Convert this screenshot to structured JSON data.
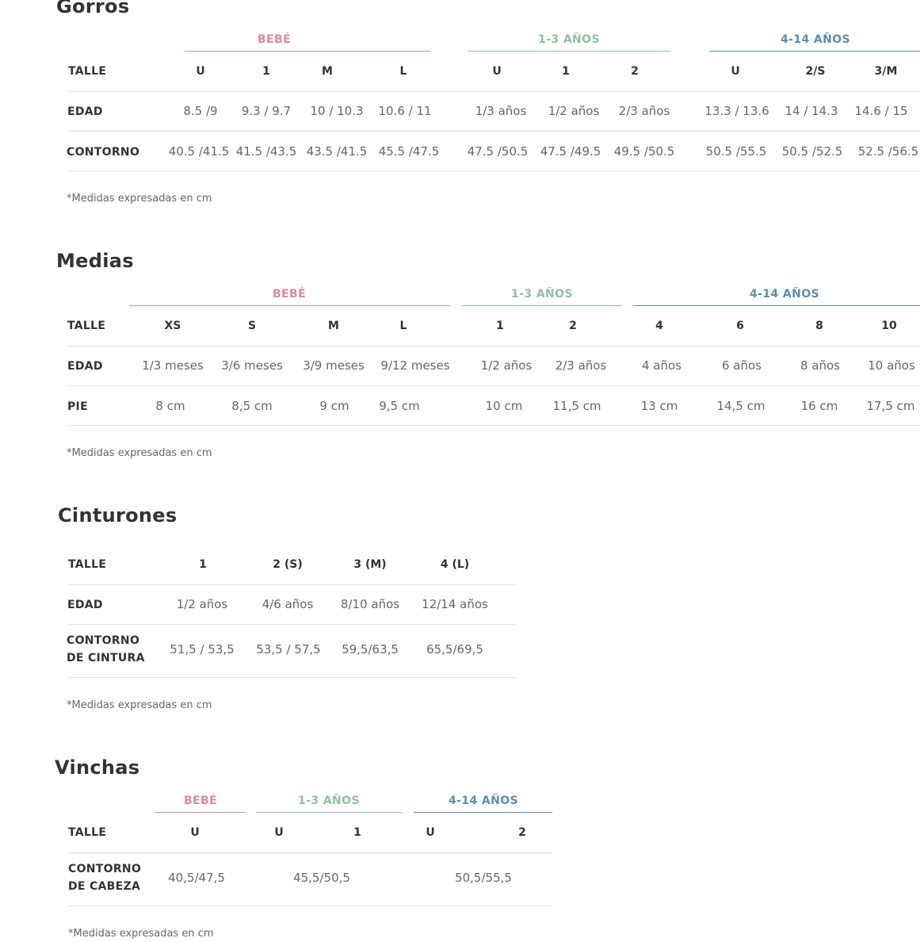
{
  "note": "*Medidas expresadas en cm",
  "gorros": {
    "title": "Gorros",
    "groups": [
      "BEBÉ",
      "1-3 AÑOS",
      "4-14 AÑOS"
    ],
    "rows": [
      "TALLE",
      "EDAD",
      "CONTORNO"
    ],
    "talle": [
      "U",
      "1",
      "M",
      "L",
      "U",
      "1",
      "2",
      "U",
      "2/S",
      "3/M"
    ],
    "edad": [
      "8.5 /9",
      "9.3 / 9.7",
      "10 / 10.3",
      "10.6 / 11",
      "1/3 años",
      "1/2 años",
      "2/3 años",
      "13.3 / 13.6",
      "14 / 14.3",
      "14.6 / 15"
    ],
    "contorno": [
      "40.5 /41.5",
      "41.5 /43.5",
      "43.5 /41.5",
      "45.5 /47.5",
      "47.5 /50.5",
      "47.5 /49.5",
      "49.5 /50.5",
      "50.5 /55.5",
      "50.5 /52.5",
      "52.5 /56.5"
    ]
  },
  "medias": {
    "title": "Medias",
    "groups": [
      "BEBÉ",
      "1-3 AÑOS",
      "4-14 AÑOS"
    ],
    "rows": [
      "TALLE",
      "EDAD",
      "PIE"
    ],
    "talle": [
      "XS",
      "S",
      "M",
      "L",
      "1",
      "2",
      "4",
      "6",
      "8",
      "10"
    ],
    "edad": [
      "1/3 meses",
      "3/6 meses",
      "3/9 meses",
      "9/12 meses",
      "1/2 años",
      "2/3 años",
      "4 años",
      "6 años",
      "8 años",
      "10 años"
    ],
    "pie": [
      "8 cm",
      "8,5 cm",
      "9 cm",
      "9,5 cm",
      "10 cm",
      "11,5 cm",
      "13 cm",
      "14,5 cm",
      "16 cm",
      "17,5 cm"
    ]
  },
  "cinturones": {
    "title": "Cinturones",
    "rows": [
      "TALLE",
      "EDAD",
      "CONTORNO",
      "DE CINTURA"
    ],
    "talle": [
      "1",
      "2 (S)",
      "3 (M)",
      "4 (L)"
    ],
    "edad": [
      "1/2 años",
      "4/6 años",
      "8/10 años",
      "12/14 años"
    ],
    "contorno": [
      "51,5 / 53,5",
      "53,5 / 57,5",
      "59,5/63,5",
      "65,5/69,5"
    ]
  },
  "vinchas": {
    "title": "Vinchas",
    "groups": [
      "BEBÉ",
      "1-3 AÑOS",
      "4-14 AÑOS"
    ],
    "rows": [
      "TALLE",
      "CONTORNO",
      "DE CABEZA"
    ],
    "talle": [
      "U",
      "U",
      "1",
      "U",
      "2"
    ],
    "contorno": [
      "40,5/47,5",
      "45,5/50,5",
      "50,5/55,5"
    ]
  },
  "colors": {
    "bebe": "#d98aa3",
    "anos_1_3": "#8fbf9f",
    "anos_4_14": "#5a8fa8"
  }
}
